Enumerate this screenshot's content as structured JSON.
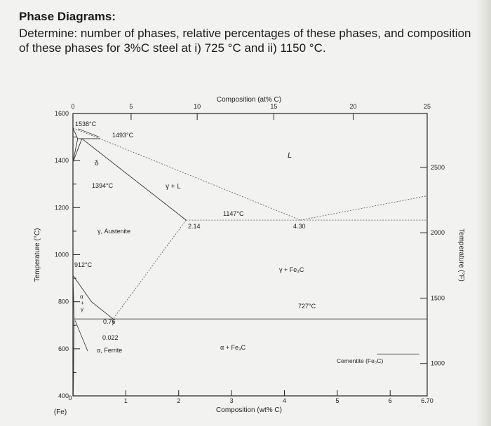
{
  "header": {
    "title": "Phase Diagrams:",
    "question": "Determine: number of phases, relative percentages of these phases, and composition of these phases for 3%C steel at i) 725 °C and ii) 1150 °C."
  },
  "diagram": {
    "top_axis_title": "Composition (at% C)",
    "top_ticks": [
      {
        "label": "0",
        "at_wt": 0
      },
      {
        "label": "5",
        "at_wt": 1.1
      },
      {
        "label": "10",
        "at_wt": 2.35
      },
      {
        "label": "15",
        "at_wt": 3.8
      },
      {
        "label": "20",
        "at_wt": 5.3
      },
      {
        "label": "25",
        "at_wt": 6.7
      }
    ],
    "bottom_axis_title": "Composition (wt% C)",
    "bottom_ticks": [
      "0",
      "1",
      "2",
      "3",
      "4",
      "5",
      "6",
      "6.70"
    ],
    "bottom_origin_label": "(Fe)",
    "left_axis_title": "Temperature (°C)",
    "left_ticks": [
      "1600",
      "1400",
      "1200",
      "1000",
      "800",
      "600",
      "400"
    ],
    "right_axis_title": "Temperature (°F)",
    "right_ticks": [
      {
        "label": "2500",
        "F": 2500
      },
      {
        "label": "2000",
        "F": 2000
      },
      {
        "label": "1500",
        "F": 1500
      },
      {
        "label": "1000",
        "F": 1000
      }
    ],
    "labels": {
      "t1538": "1538°C",
      "t1493": "1493°C",
      "delta": "δ",
      "t1394": "1394°C",
      "gamma_L": "γ + L",
      "L": "L",
      "t1147": "1147°C",
      "c214": "2.14",
      "c430": "4.30",
      "austenite": "γ, Austenite",
      "t912": "912°C",
      "gamma_fe3c": "γ + Fe₃C",
      "t727": "727°C",
      "alpha_plus_gamma_a": "α",
      "alpha_plus_gamma_plus": "+",
      "alpha_plus_gamma_g": "γ",
      "c076": "0.76",
      "c0022": "0.022",
      "ferrite": "α, Ferrite",
      "alpha_fe3c": "α + Fe₃C",
      "cementite": "Cementite (Fe₃C)"
    },
    "points": {
      "eutectic": {
        "wt": 4.3,
        "T": 1147
      },
      "eutectoid": {
        "wt": 0.76,
        "T": 727
      },
      "max_austenite": {
        "wt": 2.14,
        "T": 1147
      },
      "max_ferrite": {
        "wt": 0.022,
        "T": 727
      },
      "fe_melting": {
        "wt": 0,
        "T": 1538
      },
      "peritectic": {
        "wt": 0.17,
        "T": 1493
      },
      "alpha_gamma_fe": {
        "wt": 0,
        "T": 912
      }
    },
    "ranges": {
      "wt": [
        0,
        6.7
      ],
      "T": [
        400,
        1600
      ]
    }
  }
}
